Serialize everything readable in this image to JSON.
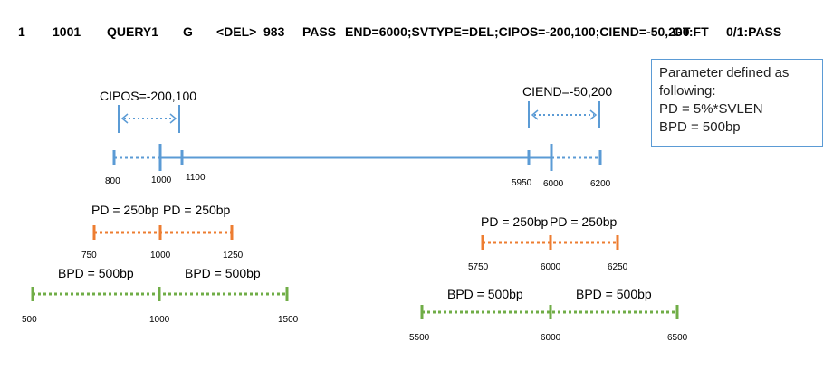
{
  "record_line": {
    "chrom": "1",
    "pos": "1001",
    "id": "QUERY1",
    "ref": "G",
    "alt": "<DEL>",
    "qual": "983",
    "filter": "PASS",
    "info": "END=6000;SVTYPE=DEL;CIPOS=-200,100;CIEND=-50,200",
    "format": "GT:FT",
    "sample": "0/1:PASS"
  },
  "parameters_box": {
    "title_line1": "Parameter defined as",
    "title_line2": "following:",
    "pd_def": "PD = 5%*SVLEN",
    "bpd_def": "BPD = 500bp"
  },
  "colors": {
    "sv_line": "#5b9bd5",
    "pd_line": "#ed7d31",
    "bpd_line": "#70ad47",
    "box_border": "#5b9bd5"
  },
  "sv_track": {
    "cipos_label": "CIPOS=-200,100",
    "ciend_label": "CIEND=-50,200",
    "ticks": [
      "800",
      "1000",
      "1100",
      "5950",
      "6000",
      "6200"
    ]
  },
  "pd_left": {
    "left_label": "PD = 250bp",
    "right_label": "PD = 250bp",
    "ticks": [
      "750",
      "1000",
      "1250"
    ]
  },
  "pd_right": {
    "left_label": "PD = 250bp",
    "right_label": "PD = 250bp",
    "ticks": [
      "5750",
      "6000",
      "6250"
    ]
  },
  "bpd_left": {
    "left_label": "BPD = 500bp",
    "right_label": "BPD = 500bp",
    "ticks": [
      "500",
      "1000",
      "1500"
    ]
  },
  "bpd_right": {
    "left_label": "BPD = 500bp",
    "right_label": "BPD = 500bp",
    "ticks": [
      "5500",
      "6000",
      "6500"
    ]
  }
}
